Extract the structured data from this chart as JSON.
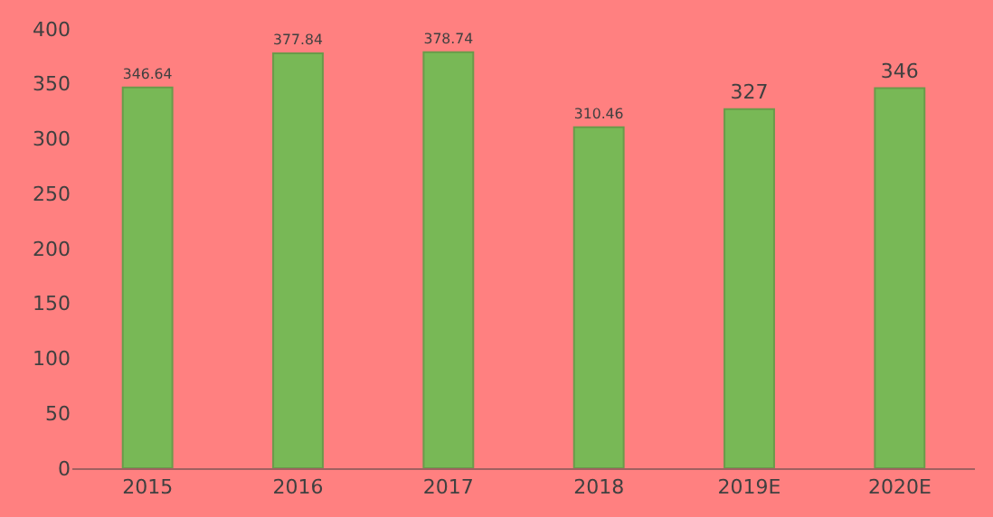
{
  "chart_data": {
    "type": "bar",
    "categories": [
      "2015",
      "2016",
      "2017",
      "2018",
      "2019E",
      "2020E"
    ],
    "values": [
      346.64,
      377.84,
      378.74,
      310.46,
      327,
      346
    ],
    "color": "#78b856",
    "ylim": [
      0,
      400
    ],
    "yticks": [
      0,
      50,
      100,
      150,
      200,
      250,
      300,
      350,
      400
    ],
    "data_labels": true,
    "grid": false
  }
}
